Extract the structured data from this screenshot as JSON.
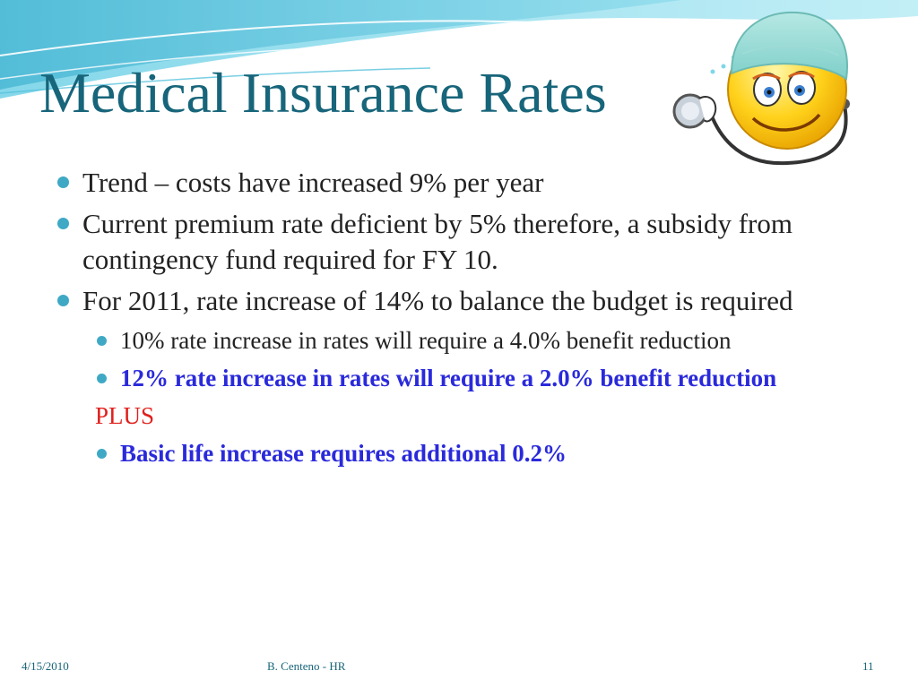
{
  "slide": {
    "title": "Medical Insurance Rates",
    "bullets": [
      "Trend – costs have increased 9% per year",
      "Current premium rate deficient by 5% therefore, a subsidy from contingency fund required for FY 10.",
      "For 2011, rate increase of 14% to balance the budget is required"
    ],
    "sub_bullets": [
      "10% rate increase in rates will require a 4.0% benefit reduction",
      "12% rate increase in rates will require a 2.0% benefit reduction"
    ],
    "plus_label": "PLUS",
    "final_sub_bullet": "Basic life increase requires additional 0.2%"
  },
  "footer": {
    "date": "4/15/2010",
    "author": "B. Centeno - HR",
    "page_number": "11"
  },
  "decorations": {
    "wave_graphic": "wave-graphic",
    "mascot": "doctor-smiley-mascot-icon"
  },
  "colors": {
    "title": "#17657a",
    "bullet": "#3fa9c5",
    "emphasis": "#2a2adb",
    "plus": "#e0201c",
    "body_text": "#222222"
  }
}
